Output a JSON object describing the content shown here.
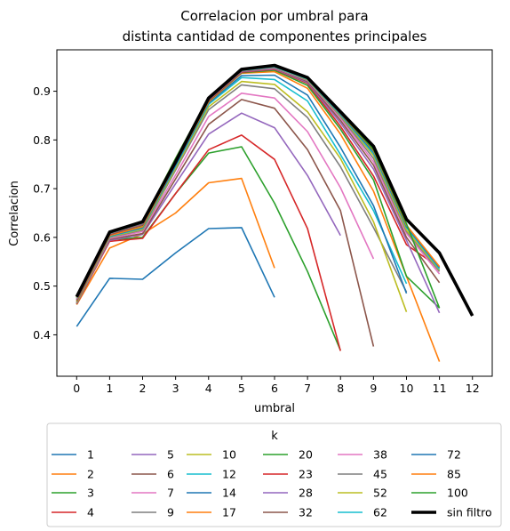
{
  "chart_data": {
    "type": "line",
    "title_lines": [
      "Correlacion por umbral para",
      "distinta cantidad de componentes principales"
    ],
    "xlabel": "umbral",
    "ylabel": "Correlacion",
    "xlim": [
      -0.6,
      12.6
    ],
    "ylim": [
      0.315,
      0.985
    ],
    "xticks": [
      0,
      1,
      2,
      3,
      4,
      5,
      6,
      7,
      8,
      9,
      10,
      11,
      12
    ],
    "xtick_labels": [
      "0",
      "1",
      "2",
      "3",
      "4",
      "5",
      "6",
      "7",
      "8",
      "9",
      "10",
      "11",
      "12"
    ],
    "yticks": [
      0.4,
      0.5,
      0.6,
      0.7,
      0.8,
      0.9
    ],
    "ytick_labels": [
      "0.4",
      "0.5",
      "0.6",
      "0.7",
      "0.8",
      "0.9"
    ],
    "grid": false,
    "legend": {
      "title": "k",
      "placement": "below",
      "columns": 6
    },
    "series": [
      {
        "name": "1",
        "color": "#1f77b4",
        "x": [
          0,
          1,
          2,
          3,
          4,
          5,
          6
        ],
        "values": [
          0.417,
          0.516,
          0.514,
          0.568,
          0.618,
          0.62,
          0.477
        ]
      },
      {
        "name": "2",
        "color": "#ff7f0e",
        "x": [
          0,
          1,
          2,
          3,
          4,
          5,
          6
        ],
        "values": [
          0.462,
          0.578,
          0.607,
          0.65,
          0.712,
          0.721,
          0.537
        ]
      },
      {
        "name": "3",
        "color": "#2ca02c",
        "x": [
          0,
          1,
          2,
          3,
          4,
          5,
          6,
          7,
          8
        ],
        "values": [
          0.463,
          0.595,
          0.6,
          0.69,
          0.773,
          0.786,
          0.67,
          0.53,
          0.368
        ]
      },
      {
        "name": "4",
        "color": "#d62728",
        "x": [
          0,
          1,
          2,
          3,
          4,
          5,
          6,
          7,
          8
        ],
        "values": [
          0.463,
          0.592,
          0.598,
          0.69,
          0.78,
          0.81,
          0.76,
          0.618,
          0.367
        ]
      },
      {
        "name": "5",
        "color": "#9467bd",
        "x": [
          0,
          1,
          2,
          3,
          4,
          5,
          6,
          7,
          8
        ],
        "values": [
          0.464,
          0.594,
          0.606,
          0.71,
          0.812,
          0.855,
          0.825,
          0.727,
          0.604
        ]
      },
      {
        "name": "6",
        "color": "#8c564b",
        "x": [
          0,
          1,
          2,
          3,
          4,
          5,
          6,
          7,
          8,
          9
        ],
        "values": [
          0.464,
          0.596,
          0.608,
          0.72,
          0.832,
          0.883,
          0.865,
          0.78,
          0.655,
          0.376
        ]
      },
      {
        "name": "7",
        "color": "#e377c2",
        "x": [
          0,
          1,
          2,
          3,
          4,
          5,
          6,
          7,
          8,
          9
        ],
        "values": [
          0.465,
          0.598,
          0.612,
          0.728,
          0.848,
          0.896,
          0.886,
          0.817,
          0.702,
          0.556
        ]
      },
      {
        "name": "9",
        "color": "#7f7f7f",
        "x": [
          0,
          1,
          2,
          3,
          4,
          5,
          6,
          7,
          8,
          9,
          10
        ],
        "values": [
          0.466,
          0.6,
          0.615,
          0.738,
          0.862,
          0.913,
          0.905,
          0.846,
          0.745,
          0.62,
          0.488
        ]
      },
      {
        "name": "10",
        "color": "#bcbd22",
        "x": [
          0,
          1,
          2,
          3,
          4,
          5,
          6,
          7,
          8,
          9,
          10
        ],
        "values": [
          0.466,
          0.601,
          0.617,
          0.742,
          0.868,
          0.92,
          0.914,
          0.858,
          0.762,
          0.632,
          0.447
        ]
      },
      {
        "name": "12",
        "color": "#17becf",
        "x": [
          0,
          1,
          2,
          3,
          4,
          5,
          6,
          7,
          8,
          9,
          10
        ],
        "values": [
          0.467,
          0.602,
          0.619,
          0.746,
          0.873,
          0.928,
          0.924,
          0.88,
          0.77,
          0.655,
          0.505
        ]
      },
      {
        "name": "14",
        "color": "#1f77b4",
        "x": [
          0,
          1,
          2,
          3,
          4,
          5,
          6,
          7,
          8,
          9,
          10
        ],
        "values": [
          0.467,
          0.603,
          0.62,
          0.748,
          0.876,
          0.932,
          0.933,
          0.892,
          0.785,
          0.665,
          0.485
        ]
      },
      {
        "name": "17",
        "color": "#ff7f0e",
        "x": [
          0,
          1,
          2,
          3,
          4,
          5,
          6,
          7,
          8,
          9,
          10,
          11
        ],
        "values": [
          0.468,
          0.604,
          0.622,
          0.752,
          0.878,
          0.937,
          0.94,
          0.906,
          0.812,
          0.695,
          0.52,
          0.345
        ]
      },
      {
        "name": "20",
        "color": "#2ca02c",
        "x": [
          0,
          1,
          2,
          3,
          4,
          5,
          6,
          7,
          8,
          9,
          10,
          11
        ],
        "values": [
          0.47,
          0.606,
          0.625,
          0.755,
          0.88,
          0.938,
          0.943,
          0.912,
          0.822,
          0.718,
          0.52,
          0.455
        ]
      },
      {
        "name": "23",
        "color": "#d62728",
        "x": [
          0,
          1,
          2,
          3,
          4,
          5,
          6,
          7,
          8,
          9,
          10,
          11
        ],
        "values": [
          0.471,
          0.606,
          0.626,
          0.756,
          0.881,
          0.939,
          0.945,
          0.916,
          0.828,
          0.726,
          0.585,
          0.538
        ]
      },
      {
        "name": "28",
        "color": "#9467bd",
        "x": [
          0,
          1,
          2,
          3,
          4,
          5,
          6,
          7,
          8,
          9,
          10,
          11
        ],
        "values": [
          0.472,
          0.607,
          0.627,
          0.757,
          0.882,
          0.94,
          0.946,
          0.918,
          0.835,
          0.74,
          0.594,
          0.445
        ]
      },
      {
        "name": "32",
        "color": "#8c564b",
        "x": [
          0,
          1,
          2,
          3,
          4,
          5,
          6,
          7,
          8,
          9,
          10,
          11
        ],
        "values": [
          0.473,
          0.607,
          0.628,
          0.758,
          0.883,
          0.941,
          0.947,
          0.92,
          0.84,
          0.748,
          0.6,
          0.507
        ]
      },
      {
        "name": "38",
        "color": "#e377c2",
        "x": [
          0,
          1,
          2,
          3,
          4,
          5,
          6,
          7,
          8,
          9,
          10,
          11
        ],
        "values": [
          0.474,
          0.608,
          0.629,
          0.759,
          0.884,
          0.942,
          0.948,
          0.922,
          0.845,
          0.755,
          0.608,
          0.525
        ]
      },
      {
        "name": "45",
        "color": "#7f7f7f",
        "x": [
          0,
          1,
          2,
          3,
          4,
          5,
          6,
          7,
          8,
          9,
          10,
          11
        ],
        "values": [
          0.475,
          0.608,
          0.629,
          0.76,
          0.884,
          0.942,
          0.949,
          0.923,
          0.848,
          0.762,
          0.612,
          0.53
        ]
      },
      {
        "name": "52",
        "color": "#bcbd22",
        "x": [
          0,
          1,
          2,
          3,
          4,
          5,
          6,
          7,
          8,
          9,
          10,
          11
        ],
        "values": [
          0.476,
          0.609,
          0.63,
          0.76,
          0.885,
          0.943,
          0.95,
          0.924,
          0.85,
          0.768,
          0.615,
          0.533
        ]
      },
      {
        "name": "62",
        "color": "#17becf",
        "x": [
          0,
          1,
          2,
          3,
          4,
          5,
          6,
          7,
          8,
          9,
          10,
          11
        ],
        "values": [
          0.476,
          0.609,
          0.63,
          0.761,
          0.885,
          0.943,
          0.95,
          0.925,
          0.852,
          0.772,
          0.62,
          0.535
        ]
      },
      {
        "name": "72",
        "color": "#1f77b4",
        "x": [
          0,
          1,
          2,
          3,
          4,
          5,
          6,
          7,
          8,
          9,
          10,
          11
        ],
        "values": [
          0.477,
          0.61,
          0.631,
          0.761,
          0.886,
          0.944,
          0.951,
          0.926,
          0.853,
          0.775,
          0.622,
          0.538
        ]
      },
      {
        "name": "85",
        "color": "#ff7f0e",
        "x": [
          0,
          1,
          2,
          3,
          4,
          5,
          6,
          7,
          8,
          9,
          10,
          11
        ],
        "values": [
          0.477,
          0.61,
          0.631,
          0.762,
          0.886,
          0.944,
          0.951,
          0.927,
          0.855,
          0.778,
          0.625,
          0.54
        ]
      },
      {
        "name": "100",
        "color": "#2ca02c",
        "x": [
          0,
          1,
          2,
          3,
          4,
          5,
          6,
          7,
          8,
          9,
          10,
          11
        ],
        "values": [
          0.478,
          0.611,
          0.632,
          0.762,
          0.887,
          0.945,
          0.952,
          0.927,
          0.856,
          0.78,
          0.628,
          0.455
        ]
      },
      {
        "name": "sin filtro",
        "color": "#000000",
        "bold": true,
        "x": [
          0,
          1,
          2,
          3,
          4,
          5,
          6,
          7,
          8,
          9,
          10,
          11,
          12
        ],
        "values": [
          0.478,
          0.611,
          0.632,
          0.755,
          0.886,
          0.945,
          0.953,
          0.928,
          0.858,
          0.787,
          0.637,
          0.568,
          0.439
        ]
      }
    ]
  }
}
